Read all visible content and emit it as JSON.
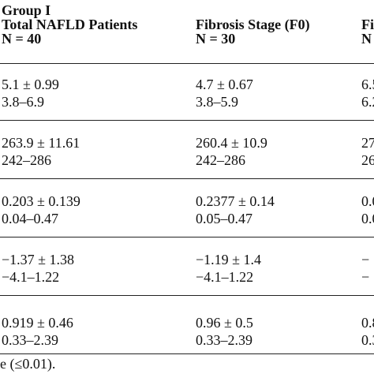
{
  "table": {
    "headers": [
      {
        "line1": "Group I",
        "line2": "Total NAFLD Patients",
        "line3": "N = 40"
      },
      {
        "line1": "",
        "line2": "Fibrosis Stage (F0)",
        "line3": "N = 30"
      },
      {
        "line1": "",
        "line2": "Fi",
        "line3": "N"
      }
    ],
    "rows": [
      {
        "cells": [
          {
            "mean": "5.1 ± 0.99",
            "range": "3.8–6.9"
          },
          {
            "mean": "4.7 ± 0.67",
            "range": "3.8–5.9"
          },
          {
            "mean": "6.5",
            "range": "6.2"
          }
        ]
      },
      {
        "cells": [
          {
            "mean": "263.9 ± 11.61",
            "range": "242–286"
          },
          {
            "mean": "260.4 ± 10.9",
            "range": "242–286"
          },
          {
            "mean": "27",
            "range": "26"
          }
        ]
      },
      {
        "cells": [
          {
            "mean": "0.203 ± 0.139",
            "range": "0.04–0.47"
          },
          {
            "mean": "0.2377 ± 0.14",
            "range": "0.05–0.47"
          },
          {
            "mean": "0.0",
            "range": "0.0"
          }
        ]
      },
      {
        "cells": [
          {
            "mean": "−1.37 ± 1.38",
            "range": "−4.1–1.22"
          },
          {
            "mean": "−1.19 ± 1.4",
            "range": "−4.1–1.22"
          },
          {
            "mean": "−",
            "range": "−"
          }
        ]
      },
      {
        "cells": [
          {
            "mean": "0.919 ± 0.46",
            "range": "0.33–2.39"
          },
          {
            "mean": "0.96 ± 0.5",
            "range": "0.33–2.39"
          },
          {
            "mean": "0.8",
            "range": "0.3"
          }
        ]
      }
    ]
  },
  "footnote": "e (≤0.01)."
}
